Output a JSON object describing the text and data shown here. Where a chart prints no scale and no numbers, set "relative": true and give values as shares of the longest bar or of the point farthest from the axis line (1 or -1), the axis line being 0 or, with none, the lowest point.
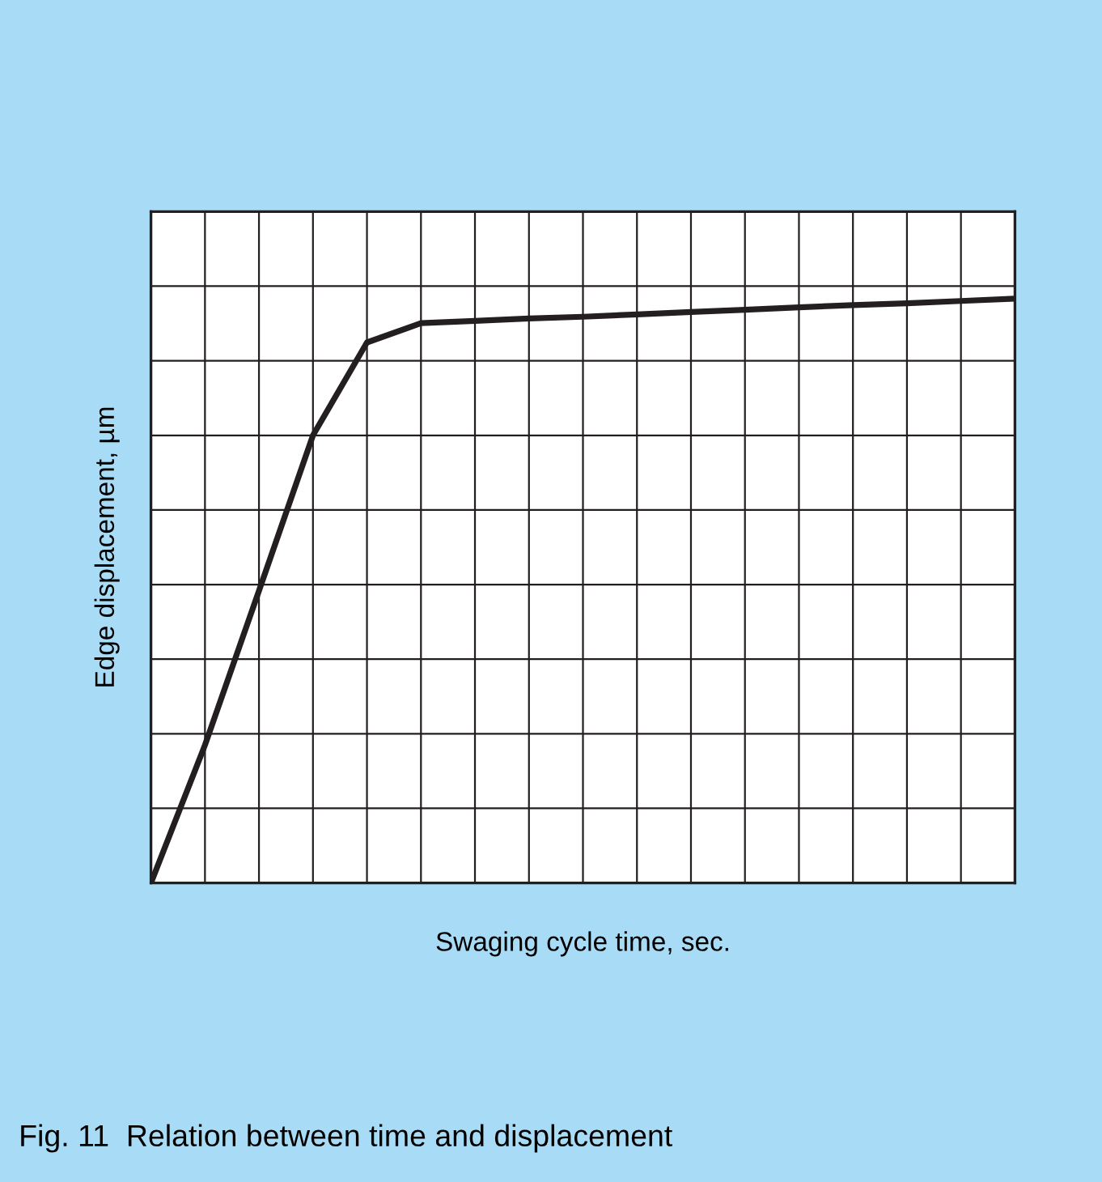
{
  "chart_data": {
    "type": "line",
    "relative": true,
    "xlabel": "Swaging cycle time, sec.",
    "ylabel": "Edge displacement, µm",
    "annotations": [
      "Fig. 11  Relation between time and displacement"
    ],
    "categories": [
      null,
      null,
      null,
      null,
      null,
      null,
      null,
      null,
      null,
      null,
      null,
      null,
      null,
      null,
      null,
      null,
      null
    ],
    "series": [
      {
        "color": "#231f20",
        "values": [
          0,
          0.236,
          0.5,
          0.766,
          0.925,
          0.958,
          0.962,
          0.966,
          0.969,
          0.973,
          0.977,
          0.981,
          0.985,
          0.989,
          0.992,
          0.996,
          1.0
        ]
      }
    ],
    "grid": true,
    "marker": "none",
    "line_style": "solid"
  }
}
